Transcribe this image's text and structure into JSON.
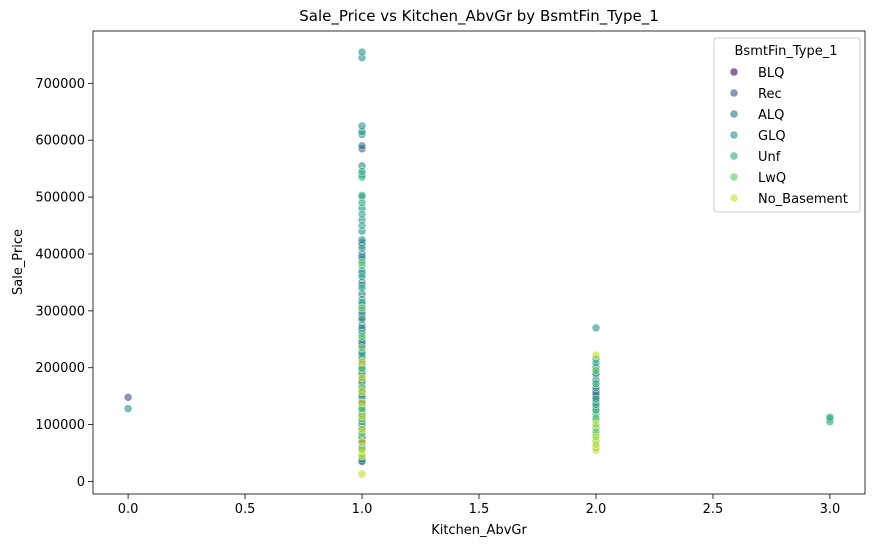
{
  "chart_data": {
    "type": "scatter",
    "title": "Sale_Price vs Kitchen_AbvGr by BsmtFin_Type_1",
    "xlabel": "Kitchen_AbvGr",
    "ylabel": "Sale_Price",
    "xlim": [
      -0.15,
      3.15
    ],
    "ylim": [
      -22000,
      792000
    ],
    "xticks": [
      0.0,
      0.5,
      1.0,
      1.5,
      2.0,
      2.5,
      3.0
    ],
    "xtick_labels": [
      "0.0",
      "0.5",
      "1.0",
      "1.5",
      "2.0",
      "2.5",
      "3.0"
    ],
    "yticks": [
      0,
      100000,
      200000,
      300000,
      400000,
      500000,
      600000,
      700000
    ],
    "ytick_labels": [
      "0",
      "100000",
      "200000",
      "300000",
      "400000",
      "500000",
      "600000",
      "700000"
    ],
    "grid": false,
    "legend": {
      "title": "BsmtFin_Type_1",
      "position": "top-right"
    },
    "series": [
      {
        "name": "BLQ",
        "color": "#440154",
        "points": [
          [
            1,
            36000
          ],
          [
            1,
            75000
          ],
          [
            1,
            112000
          ],
          [
            1,
            135000
          ],
          [
            1,
            155000
          ],
          [
            1,
            178000
          ],
          [
            1,
            205000
          ],
          [
            1,
            240000
          ],
          [
            1,
            288000
          ],
          [
            2,
            148000
          ],
          [
            2,
            160000
          ]
        ]
      },
      {
        "name": "Rec",
        "color": "#3b528b",
        "points": [
          [
            0,
            148000
          ],
          [
            1,
            40000
          ],
          [
            1,
            68000
          ],
          [
            1,
            95000
          ],
          [
            1,
            120000
          ],
          [
            1,
            145000
          ],
          [
            1,
            168000
          ],
          [
            1,
            195000
          ],
          [
            1,
            228000
          ],
          [
            1,
            265000
          ],
          [
            1,
            310000
          ],
          [
            1,
            350000
          ],
          [
            1,
            400000
          ],
          [
            1,
            415000
          ],
          [
            1,
            585000
          ],
          [
            2,
            140000
          ],
          [
            2,
            150000
          ],
          [
            2,
            188000
          ]
        ]
      },
      {
        "name": "ALQ",
        "color": "#2c728e",
        "points": [
          [
            1,
            60000
          ],
          [
            1,
            90000
          ],
          [
            1,
            118000
          ],
          [
            1,
            140000
          ],
          [
            1,
            162000
          ],
          [
            1,
            185000
          ],
          [
            1,
            215000
          ],
          [
            1,
            250000
          ],
          [
            1,
            275000
          ],
          [
            1,
            300000
          ],
          [
            1,
            330000
          ],
          [
            1,
            365000
          ],
          [
            1,
            390000
          ],
          [
            1,
            420000
          ],
          [
            1,
            590000
          ],
          [
            2,
            130000
          ],
          [
            2,
            155000
          ],
          [
            2,
            200000
          ]
        ]
      },
      {
        "name": "GLQ",
        "color": "#21918c",
        "points": [
          [
            0,
            128000
          ],
          [
            1,
            100000
          ],
          [
            1,
            130000
          ],
          [
            1,
            160000
          ],
          [
            1,
            190000
          ],
          [
            1,
            220000
          ],
          [
            1,
            245000
          ],
          [
            1,
            270000
          ],
          [
            1,
            295000
          ],
          [
            1,
            320000
          ],
          [
            1,
            345000
          ],
          [
            1,
            370000
          ],
          [
            1,
            395000
          ],
          [
            1,
            425000
          ],
          [
            1,
            440000
          ],
          [
            1,
            460000
          ],
          [
            1,
            480000
          ],
          [
            1,
            500000
          ],
          [
            1,
            540000
          ],
          [
            1,
            555000
          ],
          [
            1,
            610000
          ],
          [
            1,
            615000
          ],
          [
            1,
            625000
          ],
          [
            1,
            745000
          ],
          [
            1,
            755000
          ],
          [
            2,
            270000
          ],
          [
            2,
            215000
          ],
          [
            2,
            178000
          ],
          [
            3,
            110000
          ]
        ]
      },
      {
        "name": "Unf",
        "color": "#28ae80",
        "points": [
          [
            1,
            35000
          ],
          [
            1,
            58000
          ],
          [
            1,
            80000
          ],
          [
            1,
            105000
          ],
          [
            1,
            125000
          ],
          [
            1,
            150000
          ],
          [
            1,
            175000
          ],
          [
            1,
            200000
          ],
          [
            1,
            225000
          ],
          [
            1,
            260000
          ],
          [
            1,
            285000
          ],
          [
            1,
            315000
          ],
          [
            1,
            340000
          ],
          [
            1,
            360000
          ],
          [
            1,
            380000
          ],
          [
            1,
            410000
          ],
          [
            1,
            450000
          ],
          [
            1,
            470000
          ],
          [
            1,
            490000
          ],
          [
            1,
            503000
          ],
          [
            1,
            535000
          ],
          [
            1,
            545000
          ],
          [
            2,
            82000
          ],
          [
            2,
            95000
          ],
          [
            2,
            108000
          ],
          [
            2,
            118000
          ],
          [
            2,
            125000
          ],
          [
            2,
            135000
          ],
          [
            2,
            145000
          ],
          [
            2,
            165000
          ],
          [
            2,
            172000
          ],
          [
            2,
            190000
          ],
          [
            2,
            208000
          ],
          [
            3,
            105000
          ],
          [
            3,
            113000
          ]
        ]
      },
      {
        "name": "LwQ",
        "color": "#5ec962",
        "points": [
          [
            1,
            48000
          ],
          [
            1,
            85000
          ],
          [
            1,
            110000
          ],
          [
            1,
            128000
          ],
          [
            1,
            165000
          ],
          [
            1,
            198000
          ],
          [
            1,
            235000
          ],
          [
            1,
            255000
          ],
          [
            1,
            305000
          ],
          [
            1,
            385000
          ],
          [
            2,
            60000
          ],
          [
            2,
            72000
          ],
          [
            2,
            88000
          ],
          [
            2,
            112000
          ],
          [
            2,
            195000
          ]
        ]
      },
      {
        "name": "No_Basement",
        "color": "#c2df23",
        "points": [
          [
            1,
            13000
          ],
          [
            1,
            45000
          ],
          [
            1,
            55000
          ],
          [
            1,
            70000
          ],
          [
            1,
            92000
          ],
          [
            1,
            115000
          ],
          [
            1,
            138000
          ],
          [
            1,
            158000
          ],
          [
            1,
            182000
          ],
          [
            1,
            210000
          ],
          [
            2,
            55000
          ],
          [
            2,
            65000
          ],
          [
            2,
            78000
          ],
          [
            2,
            100000
          ],
          [
            2,
            222000
          ]
        ]
      }
    ]
  }
}
